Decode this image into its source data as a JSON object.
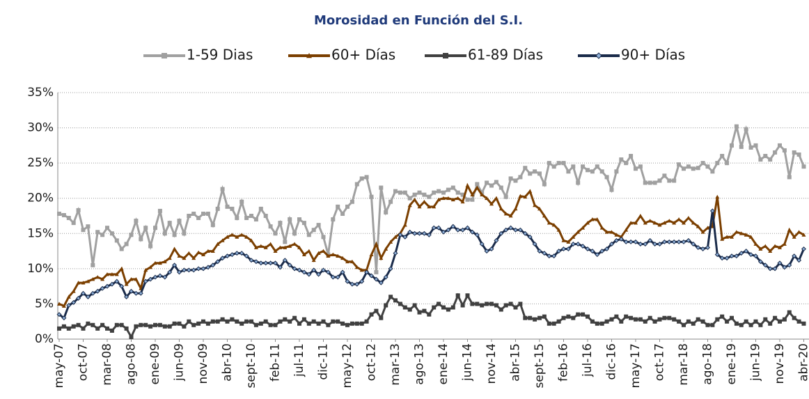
{
  "chart_data": {
    "type": "line",
    "title": "Morosidad en Función del S.I.",
    "categories": [
      "may-07",
      null,
      null,
      null,
      null,
      "oct-07",
      null,
      null,
      null,
      null,
      "mar-08",
      null,
      null,
      null,
      null,
      "ago-08",
      null,
      null,
      null,
      null,
      "ene-09",
      null,
      null,
      null,
      null,
      "jun-09",
      null,
      null,
      null,
      null,
      "nov-09",
      null,
      null,
      null,
      null,
      "abr-10",
      null,
      null,
      null,
      null,
      "sept-10",
      null,
      null,
      null,
      null,
      "feb-11",
      null,
      null,
      null,
      null,
      "jul-11",
      null,
      null,
      null,
      null,
      "dic-11",
      null,
      null,
      null,
      null,
      "may-12",
      null,
      null,
      null,
      null,
      "oct-12",
      null,
      null,
      null,
      null,
      "mar-13",
      null,
      null,
      null,
      null,
      "ago-13",
      null,
      null,
      null,
      null,
      "ene-14",
      null,
      null,
      null,
      null,
      "jun-14",
      null,
      null,
      null,
      null,
      "nov-14",
      null,
      null,
      null,
      null,
      "abr-15",
      null,
      null,
      null,
      null,
      "sept-15",
      null,
      null,
      null,
      null,
      "feb-16",
      null,
      null,
      null,
      null,
      "jul-16",
      null,
      null,
      null,
      null,
      "dic-16",
      null,
      null,
      null,
      null,
      "may-17",
      null,
      null,
      null,
      null,
      "oct-17",
      null,
      null,
      null,
      null,
      "mar-18",
      null,
      null,
      null,
      null,
      "ago-18",
      null,
      null,
      null,
      null,
      "ene-19",
      null,
      null,
      null,
      null,
      "jun-19",
      null,
      null,
      null,
      null,
      "nov-19",
      null,
      null,
      null,
      null,
      "abr-20"
    ],
    "series": [
      {
        "name": "1-59 Dias",
        "color": "#a0a0a0",
        "marker": "square",
        "values": [
          17.8,
          17.6,
          17.2,
          16.5,
          18.3,
          15.5,
          16,
          10.5,
          15.2,
          14.8,
          15.8,
          15,
          14,
          12.8,
          13.5,
          14.8,
          16.8,
          14.2,
          15.8,
          13.2,
          15.8,
          18.2,
          15,
          16.5,
          14.8,
          16.8,
          15,
          17.5,
          17.8,
          17.2,
          17.8,
          17.8,
          16.2,
          18.5,
          21.3,
          18.8,
          18.5,
          17.2,
          19.5,
          17.2,
          17.5,
          17,
          18.5,
          17.5,
          16,
          15,
          16.5,
          13.8,
          17,
          15,
          17,
          16.5,
          14.8,
          15.5,
          16.2,
          14.5,
          12,
          17,
          18.8,
          17.8,
          18.8,
          19.5,
          22,
          22.8,
          23,
          20.2,
          9.5,
          21.5,
          18,
          19.5,
          21,
          20.8,
          20.8,
          20,
          20.5,
          20.8,
          20.5,
          20.2,
          20.8,
          21,
          20.8,
          21.2,
          21.5,
          20.8,
          20.5,
          19.8,
          19.8,
          22,
          20.8,
          22.2,
          21.8,
          22.3,
          21.5,
          20.2,
          22.8,
          22.5,
          23,
          24.3,
          23.5,
          23.8,
          23.5,
          22,
          25,
          24.5,
          25,
          25,
          23.8,
          24.5,
          22.2,
          24.5,
          24,
          23.8,
          24.5,
          23.8,
          23,
          21.2,
          23.8,
          25.5,
          25,
          26,
          24.2,
          24.5,
          22.2,
          22.2,
          22.2,
          22.5,
          23.2,
          22.5,
          22.5,
          24.8,
          24.2,
          24.5,
          24.2,
          24.3,
          25,
          24.5,
          23.8,
          25,
          26,
          25,
          27.5,
          30.2,
          27.3,
          29.8,
          27.2,
          27.5,
          25.5,
          26,
          25.5,
          26.5,
          27.5,
          26.8,
          23,
          26.5,
          26.2,
          24.5
        ]
      },
      {
        "name": "60+ Días",
        "color": "#7b3f00",
        "marker": "triangle",
        "values": [
          5,
          4.7,
          6,
          6.8,
          8,
          8,
          8.2,
          8.5,
          8.8,
          8.5,
          9.2,
          9.2,
          9.2,
          10,
          7.8,
          8.5,
          8.5,
          7.2,
          9.8,
          10.2,
          10.8,
          10.8,
          11,
          11.5,
          12.8,
          11.8,
          11.5,
          12.2,
          11.5,
          12.3,
          12,
          12.5,
          12.5,
          13.5,
          14,
          14.5,
          14.8,
          14.5,
          14.8,
          14.5,
          14,
          13,
          13.2,
          13,
          13.5,
          12.5,
          13,
          13,
          13.2,
          13.5,
          13,
          12,
          12.5,
          11.2,
          12.2,
          12.5,
          11.8,
          12,
          11.8,
          11.5,
          11,
          11,
          10.2,
          9.8,
          9.8,
          12,
          13.5,
          11.5,
          12.8,
          13.8,
          14.5,
          15,
          16.2,
          19,
          19.8,
          18.8,
          19.5,
          18.8,
          18.8,
          19.8,
          20,
          20,
          19.8,
          20,
          19.5,
          21.8,
          20.5,
          21.5,
          20.5,
          20,
          19.2,
          20,
          18.5,
          17.8,
          17.5,
          18.5,
          20.3,
          20.2,
          21,
          19,
          18.5,
          17.5,
          16.5,
          16.2,
          15.5,
          14,
          13.8,
          14.5,
          15.2,
          15.8,
          16.5,
          17,
          17,
          15.8,
          15.2,
          15.2,
          14.8,
          14.5,
          15.5,
          16.5,
          16.5,
          17.5,
          16.5,
          16.8,
          16.5,
          16.2,
          16.5,
          16.8,
          16.5,
          17,
          16.5,
          17.2,
          16.5,
          16,
          15.2,
          15.8,
          16,
          20.2,
          14.2,
          14.5,
          14.5,
          15.2,
          15,
          14.8,
          14.5,
          13.5,
          12.8,
          13.2,
          12.5,
          13.2,
          13,
          13.5,
          15.5,
          14.5,
          15.2,
          14.8
        ]
      },
      {
        "name": "61-89 Días",
        "color": "#404040",
        "marker": "square",
        "values": [
          1.5,
          1.8,
          1.5,
          1.8,
          2,
          1.5,
          2.2,
          2,
          1.5,
          2,
          1.5,
          1.2,
          2,
          2,
          1.5,
          0.3,
          1.8,
          2,
          2,
          1.8,
          2,
          2,
          1.8,
          1.8,
          2.2,
          2.2,
          1.8,
          2.5,
          2,
          2.2,
          2.5,
          2.2,
          2.5,
          2.5,
          2.8,
          2.5,
          2.8,
          2.5,
          2.2,
          2.5,
          2.5,
          2,
          2.2,
          2.5,
          2,
          2,
          2.5,
          2.8,
          2.5,
          3,
          2.2,
          2.8,
          2.2,
          2.5,
          2.2,
          2.5,
          2,
          2.5,
          2.5,
          2.2,
          2,
          2.2,
          2.2,
          2.2,
          2.5,
          3.5,
          4,
          3,
          4.8,
          6,
          5.5,
          5,
          4.5,
          4.2,
          4.8,
          3.8,
          4,
          3.5,
          4.5,
          5,
          4.5,
          4.2,
          4.5,
          6.2,
          4.8,
          6.2,
          5,
          5,
          4.8,
          5,
          5,
          4.8,
          4.2,
          4.8,
          5,
          4.5,
          5,
          3,
          3,
          2.8,
          3,
          3.2,
          2.2,
          2.2,
          2.5,
          3,
          3.2,
          3,
          3.5,
          3.5,
          3.2,
          2.5,
          2.2,
          2.2,
          2.5,
          2.8,
          3.2,
          2.5,
          3.2,
          3,
          2.8,
          2.8,
          2.5,
          3,
          2.5,
          2.8,
          3,
          3,
          2.8,
          2.5,
          2,
          2.5,
          2.2,
          2.8,
          2.5,
          2,
          2,
          2.8,
          3.2,
          2.5,
          3,
          2.2,
          2,
          2.5,
          2,
          2.5,
          2,
          2.8,
          2.2,
          3,
          2.5,
          2.8,
          3.8,
          3,
          2.5,
          2.2
        ]
      },
      {
        "name": "90+ Días",
        "color": "#1a2b4a",
        "marker": "diamond",
        "values": [
          3.5,
          3,
          4.8,
          5.2,
          5.8,
          6.5,
          6,
          6.5,
          6.8,
          7.2,
          7.5,
          7.8,
          8.2,
          7.5,
          6,
          6.8,
          6.5,
          6.5,
          8.2,
          8.5,
          8.8,
          9,
          8.8,
          9.5,
          10.5,
          9.5,
          9.8,
          9.8,
          9.8,
          10,
          10,
          10.2,
          10.5,
          11,
          11.5,
          11.8,
          12,
          12.2,
          12.2,
          11.8,
          11.2,
          11,
          10.8,
          10.8,
          10.8,
          10.8,
          10.2,
          11.2,
          10.5,
          10,
          9.8,
          9.5,
          9.2,
          9.8,
          9.2,
          9.8,
          9.5,
          8.8,
          8.8,
          9.5,
          8.2,
          7.8,
          7.8,
          8.2,
          9.5,
          9,
          8.5,
          8,
          8.8,
          10,
          12.2,
          14.8,
          14.5,
          15.2,
          15,
          15,
          15,
          14.8,
          15.8,
          15.8,
          15.2,
          15.5,
          16,
          15.5,
          15.5,
          15.8,
          15.2,
          14.8,
          13.5,
          12.5,
          12.8,
          14,
          15,
          15.5,
          15.8,
          15.5,
          15.5,
          15,
          14.5,
          13.5,
          12.5,
          12.2,
          11.8,
          11.8,
          12.5,
          12.8,
          12.8,
          13.5,
          13.5,
          13.2,
          12.8,
          12.5,
          12,
          12.5,
          12.8,
          13.5,
          14,
          14.2,
          13.8,
          13.8,
          13.8,
          13.5,
          13.5,
          14,
          13.5,
          13.5,
          13.8,
          13.8,
          13.8,
          13.8,
          13.8,
          14,
          13.5,
          13,
          12.8,
          13,
          18.2,
          12,
          11.5,
          11.5,
          11.8,
          11.8,
          12.2,
          12.5,
          12,
          11.8,
          11,
          10.5,
          10,
          10,
          10.8,
          10.2,
          10.5,
          11.8,
          11.2,
          12.8
        ]
      }
    ],
    "ylim": [
      0,
      35
    ],
    "yticks": [
      {
        "value": 0,
        "label": "0%"
      },
      {
        "value": 5,
        "label": "5%"
      },
      {
        "value": 10,
        "label": "10%"
      },
      {
        "value": 15,
        "label": "15%"
      },
      {
        "value": 20,
        "label": "20%"
      },
      {
        "value": 25,
        "label": "25%"
      },
      {
        "value": 30,
        "label": "30%"
      },
      {
        "value": 35,
        "label": "35%"
      }
    ],
    "grid": true,
    "legend": "top"
  }
}
